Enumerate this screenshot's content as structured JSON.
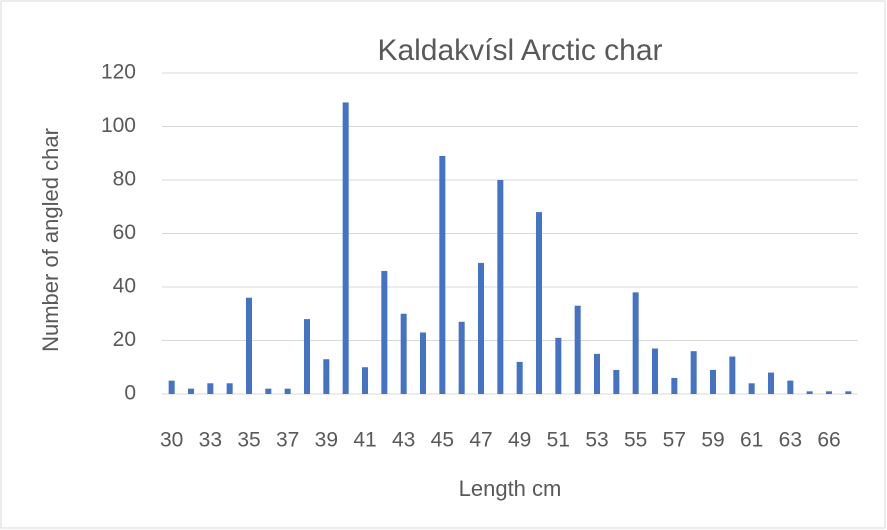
{
  "chart_data": {
    "type": "bar",
    "title": "Kaldakvísl Arctic char",
    "x_label": "Length cm",
    "y_label": "Number of angled char",
    "categories": [
      "30",
      null,
      "33",
      null,
      "35",
      null,
      "37",
      null,
      "39",
      null,
      "41",
      null,
      "43",
      null,
      "45",
      null,
      "47",
      null,
      "49",
      null,
      "51",
      null,
      "53",
      null,
      "55",
      null,
      "57",
      null,
      "59",
      null,
      "61",
      null,
      "63",
      null,
      "66",
      null
    ],
    "values": [
      5,
      2,
      4,
      4,
      36,
      2,
      2,
      28,
      13,
      109,
      10,
      46,
      30,
      23,
      89,
      27,
      49,
      80,
      12,
      68,
      21,
      33,
      15,
      9,
      38,
      17,
      6,
      16,
      9,
      14,
      4,
      8,
      5,
      1,
      1,
      1
    ],
    "color": "#4472c4",
    "ylim": [
      0,
      120
    ],
    "yticks": [
      0,
      20,
      40,
      60,
      80,
      100,
      120
    ],
    "grid": true
  }
}
